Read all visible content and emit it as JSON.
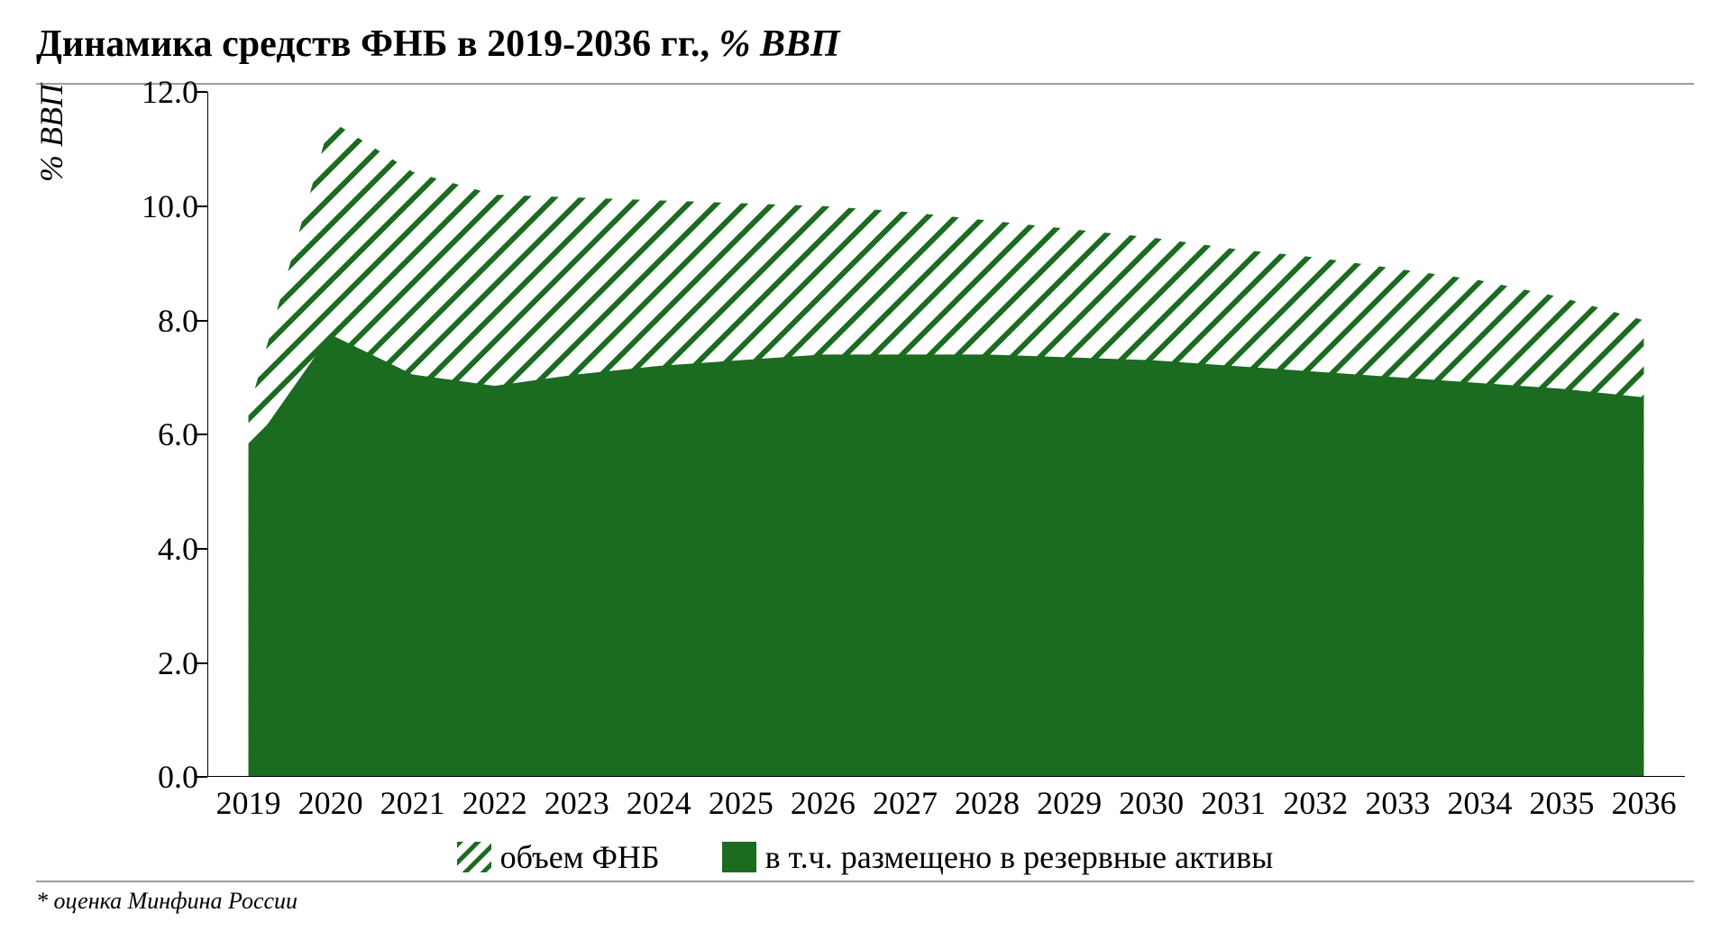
{
  "title": {
    "bold": "Динамика средств ФНБ в 2019-2036 гг., ",
    "italic": "% ВВП"
  },
  "footnote": "* оценка Минфина России",
  "chart": {
    "type": "area",
    "y_axis_label": "% ВВП",
    "y_axis_label_fontsize": 36,
    "tick_fontsize": 36,
    "legend_fontsize": 36,
    "ylim": [
      0.0,
      12.0
    ],
    "ytick_step": 2.0,
    "yticks": [
      "0.0",
      "2.0",
      "4.0",
      "6.0",
      "8.0",
      "10.0",
      "12.0"
    ],
    "xlim": [
      2019,
      2036
    ],
    "xticks": [
      "2019",
      "2020",
      "2021",
      "2022",
      "2023",
      "2024",
      "2025",
      "2026",
      "2027",
      "2028",
      "2029",
      "2030",
      "2031",
      "2032",
      "2033",
      "2034",
      "2035",
      "2036"
    ],
    "background_color": "#ffffff",
    "axis_color": "#000000",
    "hr_color": "#9e9e9e",
    "series": [
      {
        "key": "volume",
        "label": "объем ФНБ",
        "fill": "hatch",
        "hatch_color": "#1b6b20",
        "hatch_bg": "#ffffff",
        "hatch_width": 6,
        "hatch_spacing": 22,
        "values": [
          6.4,
          11.5,
          10.6,
          10.2,
          10.15,
          10.1,
          10.05,
          10.0,
          9.9,
          9.75,
          9.6,
          9.45,
          9.25,
          9.1,
          8.9,
          8.7,
          8.4,
          8.0
        ]
      },
      {
        "key": "reserves",
        "label": "в т.ч. размещено в резервные активы",
        "fill": "solid",
        "color": "#1b6b20",
        "values": [
          5.7,
          7.75,
          7.05,
          6.85,
          7.05,
          7.2,
          7.3,
          7.4,
          7.4,
          7.4,
          7.35,
          7.3,
          7.2,
          7.1,
          7.0,
          6.9,
          6.8,
          6.65
        ]
      }
    ],
    "legend": [
      {
        "swatch": "hatch",
        "label_key": "chart.series.0.label"
      },
      {
        "swatch": "solid",
        "label_key": "chart.series.1.label"
      }
    ]
  }
}
